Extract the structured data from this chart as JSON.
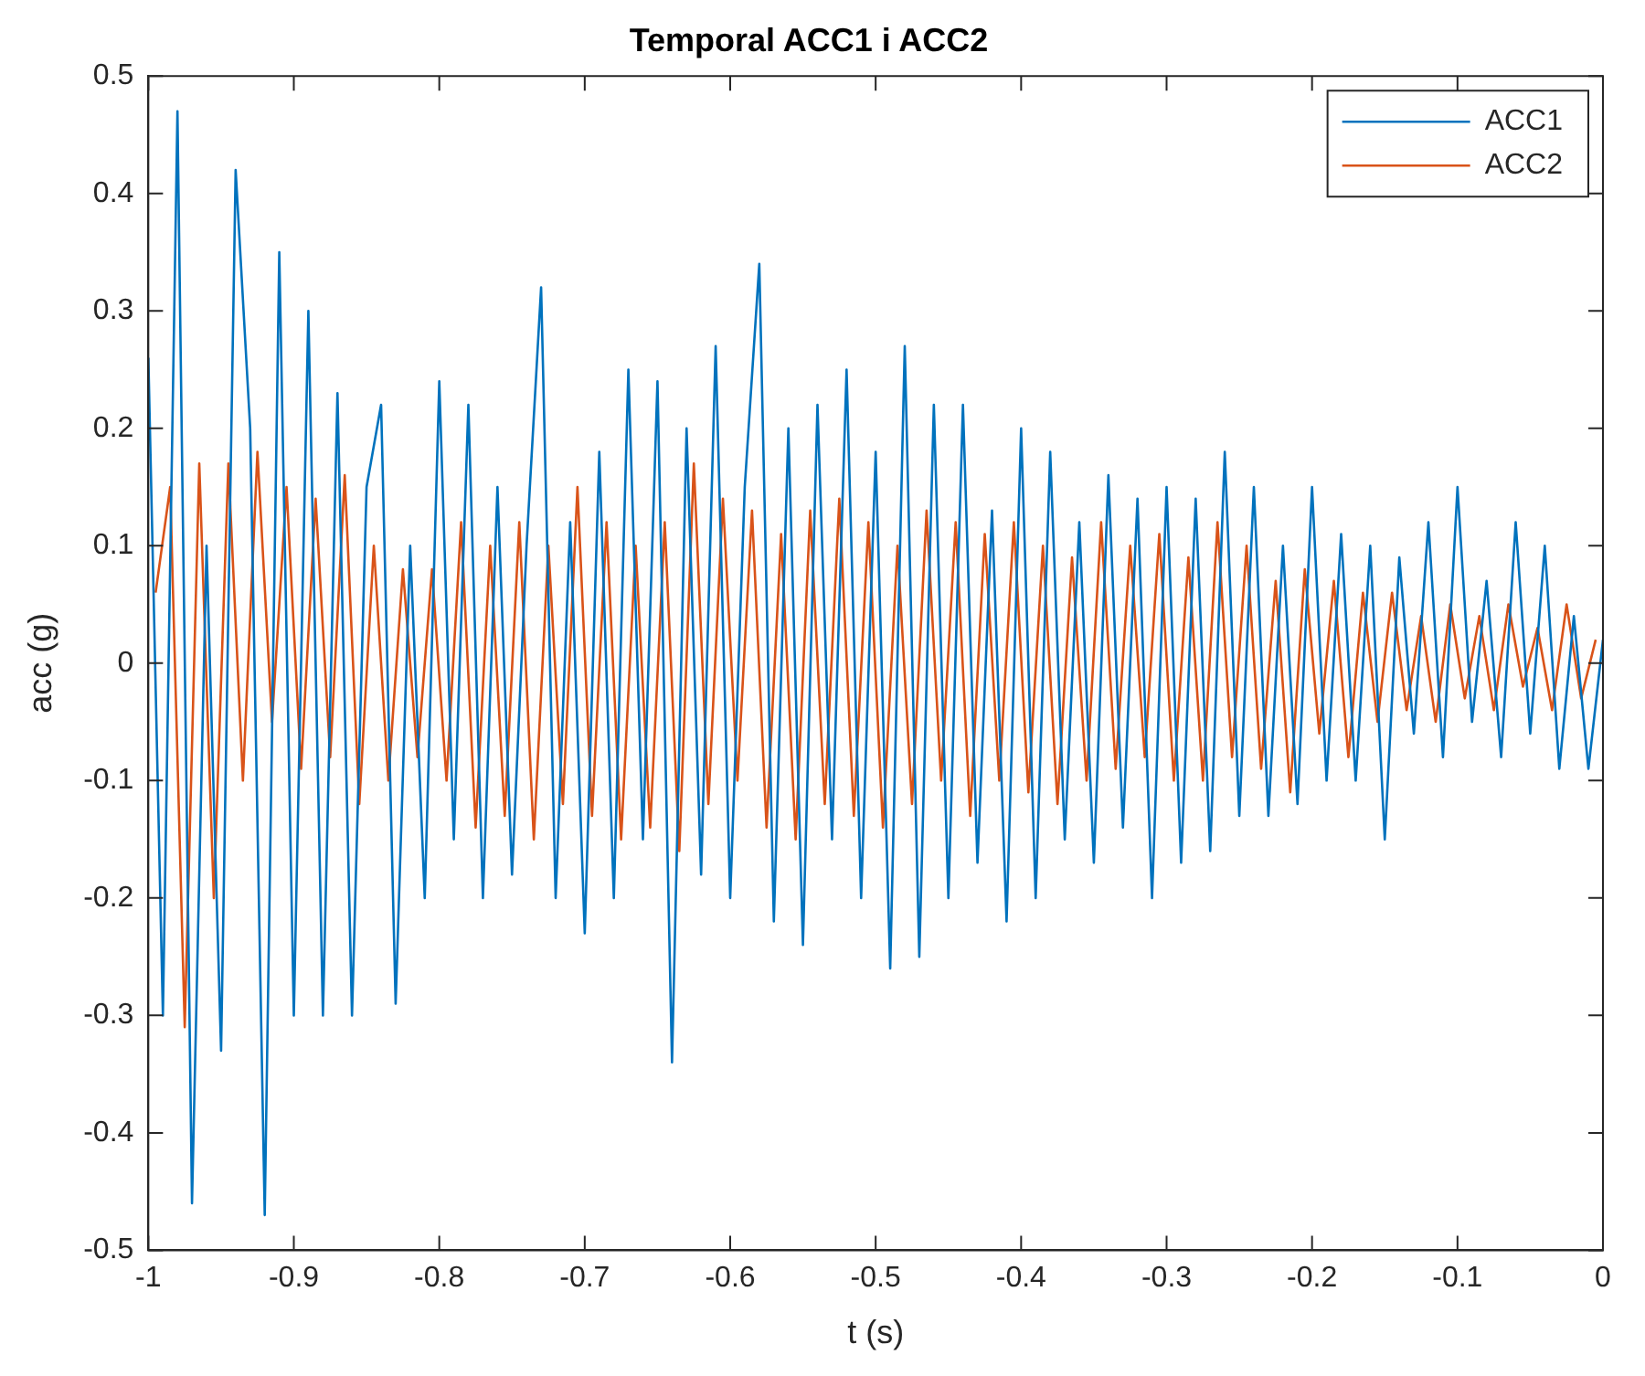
{
  "chart_data": {
    "type": "line",
    "title": "Temporal ACC1 i ACC2",
    "xlabel": "t (s)",
    "ylabel": "acc (g)",
    "xlim": [
      -1,
      0
    ],
    "xticks": [
      -1,
      -0.9,
      -0.8,
      -0.7,
      -0.6,
      -0.5,
      -0.4,
      -0.3,
      -0.2,
      -0.1,
      0
    ],
    "ylim": [
      -0.5,
      0.5
    ],
    "yticks": [
      -0.5,
      -0.4,
      -0.3,
      -0.2,
      -0.1,
      0,
      0.1,
      0.2,
      0.3,
      0.4,
      0.5
    ],
    "grid": false,
    "legend": "top right",
    "marker": "none",
    "line_style": "solid",
    "series": [
      {
        "name": "ACC1",
        "color": "#0072bd",
        "x": [
          -1,
          -0.99,
          -0.98,
          -0.97,
          -0.96,
          -0.95,
          -0.94,
          -0.93,
          -0.92,
          -0.91,
          -0.9,
          -0.89,
          -0.88,
          -0.87,
          -0.86,
          -0.85,
          -0.84,
          -0.83,
          -0.82,
          -0.81,
          -0.8,
          -0.79,
          -0.78,
          -0.77,
          -0.76,
          -0.75,
          -0.74,
          -0.73,
          -0.72,
          -0.71,
          -0.7,
          -0.69,
          -0.68,
          -0.67,
          -0.66,
          -0.65,
          -0.64,
          -0.63,
          -0.62,
          -0.61,
          -0.6,
          -0.59,
          -0.58,
          -0.57,
          -0.56,
          -0.55,
          -0.54,
          -0.53,
          -0.52,
          -0.51,
          -0.5,
          -0.49,
          -0.48,
          -0.47,
          -0.46,
          -0.45,
          -0.44,
          -0.43,
          -0.42,
          -0.41,
          -0.4,
          -0.39,
          -0.38,
          -0.37,
          -0.36,
          -0.35,
          -0.34,
          -0.33,
          -0.32,
          -0.31,
          -0.3,
          -0.29,
          -0.28,
          -0.27,
          -0.26,
          -0.25,
          -0.24,
          -0.23,
          -0.22,
          -0.21,
          -0.2,
          -0.19,
          -0.18,
          -0.17,
          -0.16,
          -0.15,
          -0.14,
          -0.13,
          -0.12,
          -0.11,
          -0.1,
          -0.09,
          -0.08,
          -0.07,
          -0.06,
          -0.05,
          -0.04,
          -0.03,
          -0.02,
          -0.01,
          0
        ],
        "values": [
          0.26,
          -0.3,
          0.47,
          -0.46,
          0.1,
          -0.33,
          0.42,
          0.2,
          -0.47,
          0.35,
          -0.3,
          0.3,
          -0.3,
          0.23,
          -0.3,
          0.15,
          0.22,
          -0.29,
          0.1,
          -0.2,
          0.24,
          -0.15,
          0.22,
          -0.2,
          0.15,
          -0.18,
          0.1,
          0.32,
          -0.2,
          0.12,
          -0.23,
          0.18,
          -0.2,
          0.25,
          -0.15,
          0.24,
          -0.34,
          0.2,
          -0.18,
          0.27,
          -0.2,
          0.15,
          0.34,
          -0.22,
          0.2,
          -0.24,
          0.22,
          -0.15,
          0.25,
          -0.2,
          0.18,
          -0.26,
          0.27,
          -0.25,
          0.22,
          -0.2,
          0.22,
          -0.17,
          0.13,
          -0.22,
          0.2,
          -0.2,
          0.18,
          -0.15,
          0.12,
          -0.17,
          0.16,
          -0.14,
          0.14,
          -0.2,
          0.15,
          -0.17,
          0.14,
          -0.16,
          0.18,
          -0.13,
          0.15,
          -0.13,
          0.1,
          -0.12,
          0.15,
          -0.1,
          0.11,
          -0.1,
          0.1,
          -0.15,
          0.09,
          -0.06,
          0.12,
          -0.08,
          0.15,
          -0.05,
          0.07,
          -0.08,
          0.12,
          -0.06,
          0.1,
          -0.09,
          0.04,
          -0.09,
          0.02
        ]
      },
      {
        "name": "ACC2",
        "color": "#d95319",
        "x": [
          -0.995,
          -0.985,
          -0.975,
          -0.965,
          -0.955,
          -0.945,
          -0.935,
          -0.925,
          -0.915,
          -0.905,
          -0.895,
          -0.885,
          -0.875,
          -0.865,
          -0.855,
          -0.845,
          -0.835,
          -0.825,
          -0.815,
          -0.805,
          -0.795,
          -0.785,
          -0.775,
          -0.765,
          -0.755,
          -0.745,
          -0.735,
          -0.725,
          -0.715,
          -0.705,
          -0.695,
          -0.685,
          -0.675,
          -0.665,
          -0.655,
          -0.645,
          -0.635,
          -0.625,
          -0.615,
          -0.605,
          -0.595,
          -0.585,
          -0.575,
          -0.565,
          -0.555,
          -0.545,
          -0.535,
          -0.525,
          -0.515,
          -0.505,
          -0.495,
          -0.485,
          -0.475,
          -0.465,
          -0.455,
          -0.445,
          -0.435,
          -0.425,
          -0.415,
          -0.405,
          -0.395,
          -0.385,
          -0.375,
          -0.365,
          -0.355,
          -0.345,
          -0.335,
          -0.325,
          -0.315,
          -0.305,
          -0.295,
          -0.285,
          -0.275,
          -0.265,
          -0.255,
          -0.245,
          -0.235,
          -0.225,
          -0.215,
          -0.205,
          -0.195,
          -0.185,
          -0.175,
          -0.165,
          -0.155,
          -0.145,
          -0.135,
          -0.125,
          -0.115,
          -0.105,
          -0.095,
          -0.085,
          -0.075,
          -0.065,
          -0.055,
          -0.045,
          -0.035,
          -0.025,
          -0.015,
          -0.005
        ],
        "values": [
          0.06,
          0.15,
          -0.31,
          0.17,
          -0.2,
          0.17,
          -0.1,
          0.18,
          -0.05,
          0.15,
          -0.09,
          0.14,
          -0.08,
          0.16,
          -0.12,
          0.1,
          -0.1,
          0.08,
          -0.08,
          0.08,
          -0.1,
          0.12,
          -0.14,
          0.1,
          -0.13,
          0.12,
          -0.15,
          0.1,
          -0.12,
          0.15,
          -0.13,
          0.12,
          -0.15,
          0.1,
          -0.14,
          0.12,
          -0.16,
          0.17,
          -0.12,
          0.14,
          -0.1,
          0.13,
          -0.14,
          0.11,
          -0.15,
          0.13,
          -0.12,
          0.14,
          -0.13,
          0.12,
          -0.14,
          0.1,
          -0.12,
          0.13,
          -0.1,
          0.12,
          -0.13,
          0.11,
          -0.1,
          0.12,
          -0.11,
          0.1,
          -0.12,
          0.09,
          -0.1,
          0.12,
          -0.09,
          0.1,
          -0.08,
          0.11,
          -0.1,
          0.09,
          -0.1,
          0.12,
          -0.08,
          0.1,
          -0.09,
          0.07,
          -0.11,
          0.08,
          -0.06,
          0.07,
          -0.08,
          0.06,
          -0.05,
          0.06,
          -0.04,
          0.04,
          -0.05,
          0.05,
          -0.03,
          0.04,
          -0.04,
          0.05,
          -0.02,
          0.03,
          -0.04,
          0.05,
          -0.03,
          0.02
        ]
      }
    ]
  }
}
